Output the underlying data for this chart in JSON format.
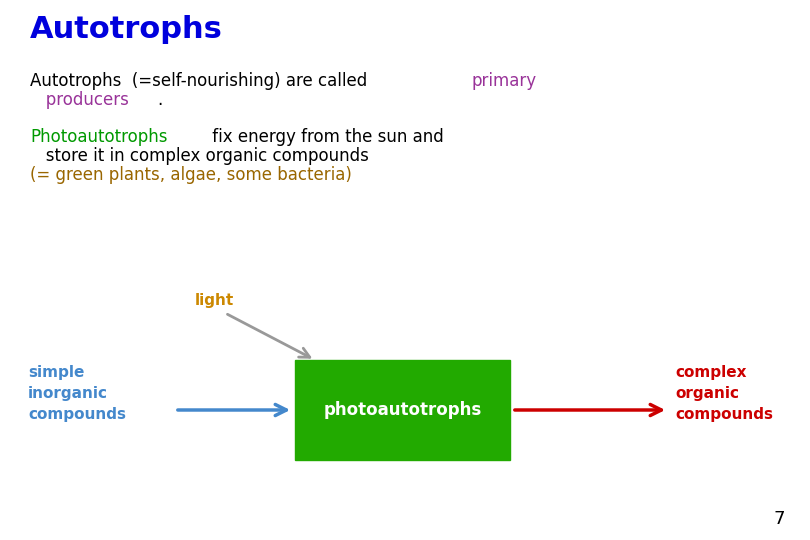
{
  "title": "Autotrophs",
  "title_color": "#0000DD",
  "title_fontsize": 22,
  "title_weight": "bold",
  "background_color": "#FFFFFF",
  "body_fontsize": 12,
  "diagram_fontsize": 11,
  "line1_black": "Autotrophs  (=self-nourishing) are called ",
  "line1_purple": "primary",
  "line2_purple": "   producers",
  "line2_black": ".",
  "line3_green": "Photoautotrophs",
  "line3_black": " fix energy from the sun and",
  "line4_black": "   store it in complex organic compounds",
  "line5_brown": "(= green plants, algae, some bacteria)",
  "purple_color": "#993399",
  "green_color": "#009900",
  "brown_color": "#996600",
  "black_color": "#000000",
  "light_label": "light",
  "light_color": "#CC8800",
  "simple_label": "simple\ninorganic\ncompounds",
  "simple_color": "#4488CC",
  "photo_label": "photoautotrophs",
  "photo_box_color": "#22AA00",
  "photo_text_color": "#000000",
  "complex_label": "complex\norganic\ncompounds",
  "complex_color": "#CC0000",
  "arrow_blue_color": "#4488CC",
  "arrow_red_color": "#CC0000",
  "arrow_gray_color": "#999999",
  "page_number": "7",
  "page_number_color": "#000000"
}
